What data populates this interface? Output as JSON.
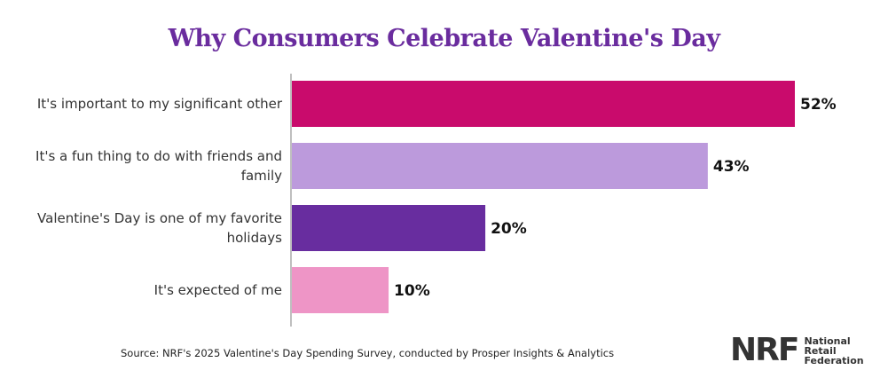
{
  "chart_data": {
    "type": "bar",
    "orientation": "horizontal",
    "title": "Why Consumers Celebrate Valentine's Day",
    "categories": [
      [
        "It's important to my significant other"
      ],
      [
        "It's a fun thing to do with friends and",
        "family"
      ],
      [
        "Valentine's Day is one of my favorite",
        "holidays"
      ],
      [
        "It's expected of me"
      ]
    ],
    "values": [
      52,
      43,
      20,
      10
    ],
    "value_labels": [
      "52%",
      "43%",
      "20%",
      "10%"
    ],
    "colors": [
      "#c90b6c",
      "#bc9adc",
      "#682d9f",
      "#ee95c6"
    ],
    "unit": "%",
    "grid": false,
    "legend": "none"
  },
  "source": "Source: NRF's 2025 Valentine's Day Spending Survey, conducted by Prosper Insights & Analytics",
  "logo": {
    "mark": "NRF",
    "text": [
      "National",
      "Retail",
      "Federation"
    ]
  }
}
